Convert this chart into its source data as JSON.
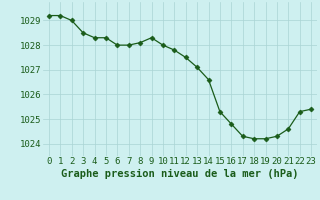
{
  "x": [
    0,
    1,
    2,
    3,
    4,
    5,
    6,
    7,
    8,
    9,
    10,
    11,
    12,
    13,
    14,
    15,
    16,
    17,
    18,
    19,
    20,
    21,
    22,
    23
  ],
  "y": [
    1029.2,
    1029.2,
    1029.0,
    1028.5,
    1028.3,
    1028.3,
    1028.0,
    1028.0,
    1028.1,
    1028.3,
    1028.0,
    1027.8,
    1027.5,
    1027.1,
    1026.6,
    1025.3,
    1024.8,
    1024.3,
    1024.2,
    1024.2,
    1024.3,
    1024.6,
    1025.3,
    1025.4
  ],
  "line_color": "#1a5c1a",
  "marker": "D",
  "marker_size": 2.5,
  "background_color": "#cef0f0",
  "grid_color": "#aad4d4",
  "xlabel": "Graphe pression niveau de la mer (hPa)",
  "xlabel_color": "#1a5c1a",
  "xlabel_fontsize": 7.5,
  "tick_label_color": "#1a5c1a",
  "tick_fontsize": 6.5,
  "ylim": [
    1023.5,
    1029.75
  ],
  "yticks": [
    1024,
    1025,
    1026,
    1027,
    1028,
    1029
  ],
  "xlim": [
    -0.5,
    23.5
  ],
  "xticks": [
    0,
    1,
    2,
    3,
    4,
    5,
    6,
    7,
    8,
    9,
    10,
    11,
    12,
    13,
    14,
    15,
    16,
    17,
    18,
    19,
    20,
    21,
    22,
    23
  ]
}
